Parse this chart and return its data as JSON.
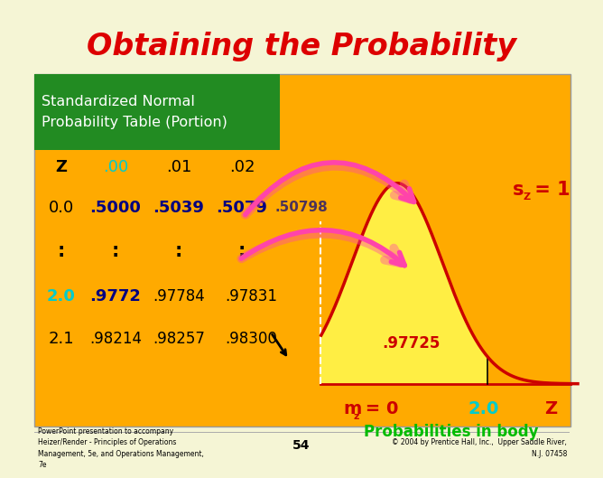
{
  "bg_color": "#f5f5d5",
  "title": "Obtaining the Probability",
  "title_color": "#dd0000",
  "green_box_color": "#228B22",
  "green_box_text": "Standardized Normal\nProbability Table (Portion)",
  "green_box_text_color": "#ffffff",
  "orange_box_color": "#ffaa00",
  "header_Z_color": "#000000",
  "header_00_color": "#00cccc",
  "header_01_color": "#000000",
  "header_02_color": "#000000",
  "row1_label_color": "#000000",
  "row1_val_color": "#000080",
  "row2_label_color": "#00cccc",
  "row2_val0_color": "#000080",
  "row2_val12_color": "#000000",
  "row3_label_color": "#000000",
  "row3_val_color": "#000000",
  "dots_color": "#000000",
  "sz_color": "#cc0000",
  "curve_line_color": "#cc0000",
  "curve_fill_color": "#ffee44",
  "prob_label_color": "#cc0000",
  "axis_color": "#cc0000",
  "axis_20_color": "#00cccc",
  "prob_body_color": "#00bb00",
  "arrow_color": "#ff44aa",
  "dashed_line_color": "#888888",
  "footer_color": "#000000",
  "footer_left": "PowerPoint presentation to accompany\nHeizer/Render - Principles of Operations\nManagement, 5e, and Operations Management,\n7e",
  "footer_center": "54",
  "footer_right": "© 2004 by Prentice Hall, Inc.,  Upper Saddle River,\nN.J. 07458"
}
